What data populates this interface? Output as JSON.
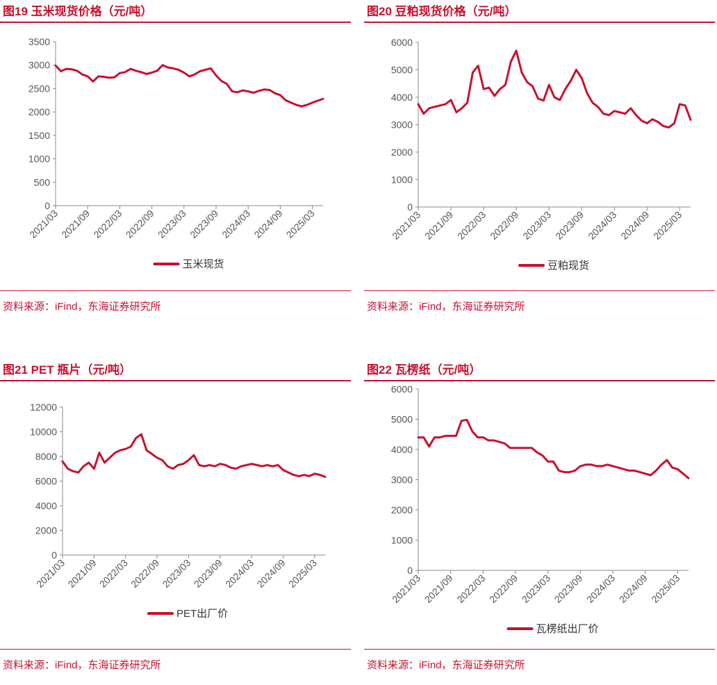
{
  "panels": [
    {
      "title": "图19  玉米现货价格（元/吨）",
      "source": "资料来源：iFind，东海证券研究所",
      "chart_data": {
        "type": "line",
        "title": "图19  玉米现货价格（元/吨）",
        "xlabel": "",
        "ylabel": "",
        "ylim": [
          0,
          3500
        ],
        "yticks": [
          0,
          500,
          1000,
          1500,
          2000,
          2500,
          3000,
          3500
        ],
        "xlim": [
          "2021-03",
          "2025-05"
        ],
        "xtick_labels": [
          "2021/03",
          "2021/09",
          "2022/03",
          "2022/09",
          "2023/03",
          "2023/09",
          "2024/03",
          "2024/09",
          "2025/03"
        ],
        "xticks": [
          "2021-03",
          "2021-09",
          "2022-03",
          "2022-09",
          "2023-03",
          "2023-09",
          "2024-03",
          "2024-09",
          "2025-03"
        ],
        "grid": false,
        "legend": "bottom",
        "color": "#c8102e",
        "series": [
          {
            "name": "玉米现货",
            "x": [
              "2021-03",
              "2021-04",
              "2021-05",
              "2021-06",
              "2021-07",
              "2021-08",
              "2021-09",
              "2021-10",
              "2021-11",
              "2021-12",
              "2022-01",
              "2022-02",
              "2022-03",
              "2022-04",
              "2022-05",
              "2022-06",
              "2022-07",
              "2022-08",
              "2022-09",
              "2022-10",
              "2022-11",
              "2022-12",
              "2023-01",
              "2023-02",
              "2023-03",
              "2023-04",
              "2023-05",
              "2023-06",
              "2023-07",
              "2023-08",
              "2023-09",
              "2023-10",
              "2023-11",
              "2023-12",
              "2024-01",
              "2024-02",
              "2024-03",
              "2024-04",
              "2024-05",
              "2024-06",
              "2024-07",
              "2024-08",
              "2024-09",
              "2024-10",
              "2024-11",
              "2024-12",
              "2025-01",
              "2025-02",
              "2025-03",
              "2025-04",
              "2025-05"
            ],
            "values": [
              2990,
              2870,
              2920,
              2910,
              2880,
              2800,
              2760,
              2650,
              2760,
              2750,
              2730,
              2740,
              2830,
              2850,
              2920,
              2880,
              2850,
              2810,
              2840,
              2880,
              3000,
              2950,
              2930,
              2900,
              2840,
              2760,
              2800,
              2870,
              2900,
              2930,
              2780,
              2660,
              2600,
              2440,
              2420,
              2460,
              2440,
              2410,
              2450,
              2480,
              2470,
              2400,
              2360,
              2250,
              2200,
              2150,
              2120,
              2150,
              2200,
              2240,
              2280
            ]
          }
        ]
      }
    },
    {
      "title": "图20  豆粕现货价格（元/吨）",
      "source": "资料来源：iFind，东海证券研究所",
      "chart_data": {
        "type": "line",
        "title": "图20  豆粕现货价格（元/吨）",
        "xlabel": "",
        "ylabel": "",
        "ylim": [
          0,
          6000
        ],
        "yticks": [
          0,
          1000,
          2000,
          3000,
          4000,
          5000,
          6000
        ],
        "xlim": [
          "2021-03",
          "2025-05"
        ],
        "xtick_labels": [
          "2021/03",
          "2021/09",
          "2022/03",
          "2022/09",
          "2023/03",
          "2023/09",
          "2024/03",
          "2024/09",
          "2025/03"
        ],
        "xticks": [
          "2021-03",
          "2021-09",
          "2022-03",
          "2022-09",
          "2023-03",
          "2023-09",
          "2024-03",
          "2024-09",
          "2025-03"
        ],
        "grid": false,
        "legend": "bottom",
        "color": "#c8102e",
        "series": [
          {
            "name": "豆粕现货",
            "x": [
              "2021-03",
              "2021-04",
              "2021-05",
              "2021-06",
              "2021-07",
              "2021-08",
              "2021-09",
              "2021-10",
              "2021-11",
              "2021-12",
              "2022-01",
              "2022-02",
              "2022-03",
              "2022-04",
              "2022-05",
              "2022-06",
              "2022-07",
              "2022-08",
              "2022-09",
              "2022-10",
              "2022-11",
              "2022-12",
              "2023-01",
              "2023-02",
              "2023-03",
              "2023-04",
              "2023-05",
              "2023-06",
              "2023-07",
              "2023-08",
              "2023-09",
              "2023-10",
              "2023-11",
              "2023-12",
              "2024-01",
              "2024-02",
              "2024-03",
              "2024-04",
              "2024-05",
              "2024-06",
              "2024-07",
              "2024-08",
              "2024-09",
              "2024-10",
              "2024-11",
              "2024-12",
              "2025-01",
              "2025-02",
              "2025-03",
              "2025-04",
              "2025-05"
            ],
            "values": [
              3750,
              3400,
              3600,
              3650,
              3700,
              3750,
              3900,
              3450,
              3600,
              3800,
              4900,
              5150,
              4300,
              4350,
              4050,
              4300,
              4450,
              5300,
              5700,
              4900,
              4550,
              4400,
              3950,
              3880,
              4450,
              4000,
              3900,
              4300,
              4600,
              5000,
              4700,
              4150,
              3800,
              3650,
              3400,
              3350,
              3500,
              3450,
              3400,
              3600,
              3350,
              3150,
              3050,
              3200,
              3100,
              2950,
              2900,
              3050,
              3750,
              3700,
              3180
            ]
          }
        ]
      }
    },
    {
      "title": "图21  PET 瓶片（元/吨）",
      "source": "资料来源：iFind，东海证券研究所",
      "chart_data": {
        "type": "line",
        "title": "图21  PET 瓶片（元/吨）",
        "xlabel": "",
        "ylabel": "",
        "ylim": [
          0,
          12000
        ],
        "yticks": [
          0,
          2000,
          4000,
          6000,
          8000,
          10000,
          12000
        ],
        "xlim": [
          "2021-03",
          "2025-05"
        ],
        "xtick_labels": [
          "2021/03",
          "2021/09",
          "2022/03",
          "2022/09",
          "2023/03",
          "2023/09",
          "2024/03",
          "2024/09",
          "2025/03"
        ],
        "xticks": [
          "2021-03",
          "2021-09",
          "2022-03",
          "2022-09",
          "2023-03",
          "2023-09",
          "2024-03",
          "2024-09",
          "2025-03"
        ],
        "grid": false,
        "legend": "bottom",
        "color": "#c8102e",
        "series": [
          {
            "name": "PET出厂价",
            "x": [
              "2021-03",
              "2021-04",
              "2021-05",
              "2021-06",
              "2021-07",
              "2021-08",
              "2021-09",
              "2021-10",
              "2021-11",
              "2021-12",
              "2022-01",
              "2022-02",
              "2022-03",
              "2022-04",
              "2022-05",
              "2022-06",
              "2022-07",
              "2022-08",
              "2022-09",
              "2022-10",
              "2022-11",
              "2022-12",
              "2023-01",
              "2023-02",
              "2023-03",
              "2023-04",
              "2023-05",
              "2023-06",
              "2023-07",
              "2023-08",
              "2023-09",
              "2023-10",
              "2023-11",
              "2023-12",
              "2024-01",
              "2024-02",
              "2024-03",
              "2024-04",
              "2024-05",
              "2024-06",
              "2024-07",
              "2024-08",
              "2024-09",
              "2024-10",
              "2024-11",
              "2024-12",
              "2025-01",
              "2025-02",
              "2025-03",
              "2025-04",
              "2025-05"
            ],
            "values": [
              7600,
              7000,
              6800,
              6700,
              7200,
              7500,
              7000,
              8300,
              7500,
              7900,
              8300,
              8500,
              8600,
              8800,
              9500,
              9800,
              8500,
              8200,
              7900,
              7700,
              7200,
              7000,
              7300,
              7400,
              7700,
              8100,
              7300,
              7200,
              7300,
              7200,
              7400,
              7300,
              7100,
              7000,
              7200,
              7300,
              7400,
              7300,
              7200,
              7300,
              7200,
              7300,
              6900,
              6700,
              6500,
              6400,
              6500,
              6400,
              6600,
              6500,
              6350
            ]
          }
        ]
      }
    },
    {
      "title": "图22  瓦楞纸（元/吨）",
      "source": "资料来源：iFind，东海证券研究所",
      "chart_data": {
        "type": "line",
        "title": "图22  瓦楞纸（元/吨）",
        "xlabel": "",
        "ylabel": "",
        "ylim": [
          0,
          6000
        ],
        "yticks": [
          0,
          1000,
          2000,
          3000,
          4000,
          5000,
          6000
        ],
        "xlim": [
          "2021-03",
          "2025-05"
        ],
        "xtick_labels": [
          "2021/03",
          "2021/09",
          "2022/03",
          "2022/09",
          "2023/03",
          "2023/09",
          "2024/03",
          "2024/09",
          "2025/03"
        ],
        "xticks": [
          "2021-03",
          "2021-09",
          "2022-03",
          "2022-09",
          "2023-03",
          "2023-09",
          "2024-03",
          "2024-09",
          "2025-03"
        ],
        "grid": false,
        "legend": "bottom",
        "color": "#c8102e",
        "series": [
          {
            "name": "瓦楞纸出厂价",
            "x": [
              "2021-03",
              "2021-04",
              "2021-05",
              "2021-06",
              "2021-07",
              "2021-08",
              "2021-09",
              "2021-10",
              "2021-11",
              "2021-12",
              "2022-01",
              "2022-02",
              "2022-03",
              "2022-04",
              "2022-05",
              "2022-06",
              "2022-07",
              "2022-08",
              "2022-09",
              "2022-10",
              "2022-11",
              "2022-12",
              "2023-01",
              "2023-02",
              "2023-03",
              "2023-04",
              "2023-05",
              "2023-06",
              "2023-07",
              "2023-08",
              "2023-09",
              "2023-10",
              "2023-11",
              "2023-12",
              "2024-01",
              "2024-02",
              "2024-03",
              "2024-04",
              "2024-05",
              "2024-06",
              "2024-07",
              "2024-08",
              "2024-09",
              "2024-10",
              "2024-11",
              "2024-12",
              "2025-01",
              "2025-02",
              "2025-03",
              "2025-04",
              "2025-05"
            ],
            "values": [
              4400,
              4400,
              4100,
              4400,
              4400,
              4450,
              4450,
              4450,
              4950,
              4980,
              4600,
              4400,
              4400,
              4300,
              4300,
              4250,
              4200,
              4050,
              4050,
              4050,
              4050,
              4050,
              3900,
              3800,
              3600,
              3600,
              3300,
              3250,
              3250,
              3300,
              3450,
              3500,
              3500,
              3450,
              3450,
              3500,
              3450,
              3400,
              3350,
              3300,
              3300,
              3250,
              3200,
              3150,
              3300,
              3500,
              3650,
              3400,
              3350,
              3200,
              3050
            ]
          }
        ]
      }
    }
  ]
}
